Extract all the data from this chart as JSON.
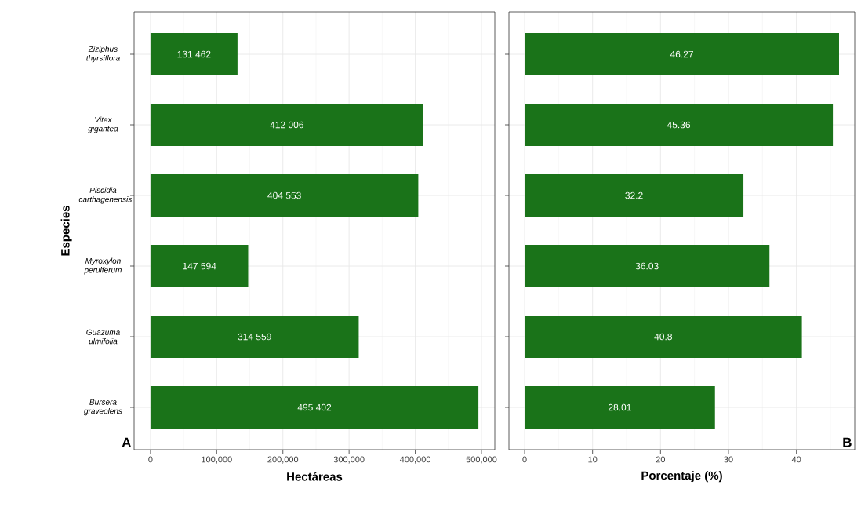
{
  "chart_data": [
    {
      "type": "bar",
      "orientation": "horizontal",
      "categories": [
        "Ziziphus thyrsiflora",
        "Vitex gigantea",
        "Piscidia carthagenensis",
        "Myroxylon peruiferum",
        "Guazuma ulmifolia",
        "Bursera graveolens"
      ],
      "values": [
        131462,
        412006,
        404553,
        147594,
        314559,
        495402
      ],
      "value_labels": [
        "131 462",
        "412 006",
        "404 553",
        "147 594",
        "314 559",
        "495 402"
      ],
      "color": "#1a7319",
      "xlim": [
        -24770,
        520172
      ],
      "xticks": [
        0,
        {
          "value": 100000,
          "label": "100,000"
        },
        {
          "value": 200000,
          "label": "200,000"
        },
        {
          "value": 300000,
          "label": "300,000"
        },
        {
          "value": 400000,
          "label": "400,000"
        },
        {
          "value": 500000,
          "label": "500,000"
        }
      ],
      "xlabel": "Hectáreas",
      "ylabel": "Especies",
      "grid": true,
      "annotations": [
        "A"
      ]
    },
    {
      "type": "bar",
      "orientation": "horizontal",
      "categories": [
        null,
        null,
        null,
        null,
        null,
        null
      ],
      "values": [
        46.27,
        45.36,
        32.2,
        36.03,
        40.8,
        28.01
      ],
      "value_labels": [
        "46.27",
        "45.36",
        "32.2",
        "36.03",
        "40.8",
        "28.01"
      ],
      "color": "#1a7319",
      "xlim": [
        -2.31,
        48.58
      ],
      "xticks": [
        0,
        10,
        20,
        30,
        40
      ],
      "xlabel": "Porcentaje (%)",
      "grid": true,
      "tick_labels": "x",
      "annotations": [
        "B"
      ]
    }
  ]
}
